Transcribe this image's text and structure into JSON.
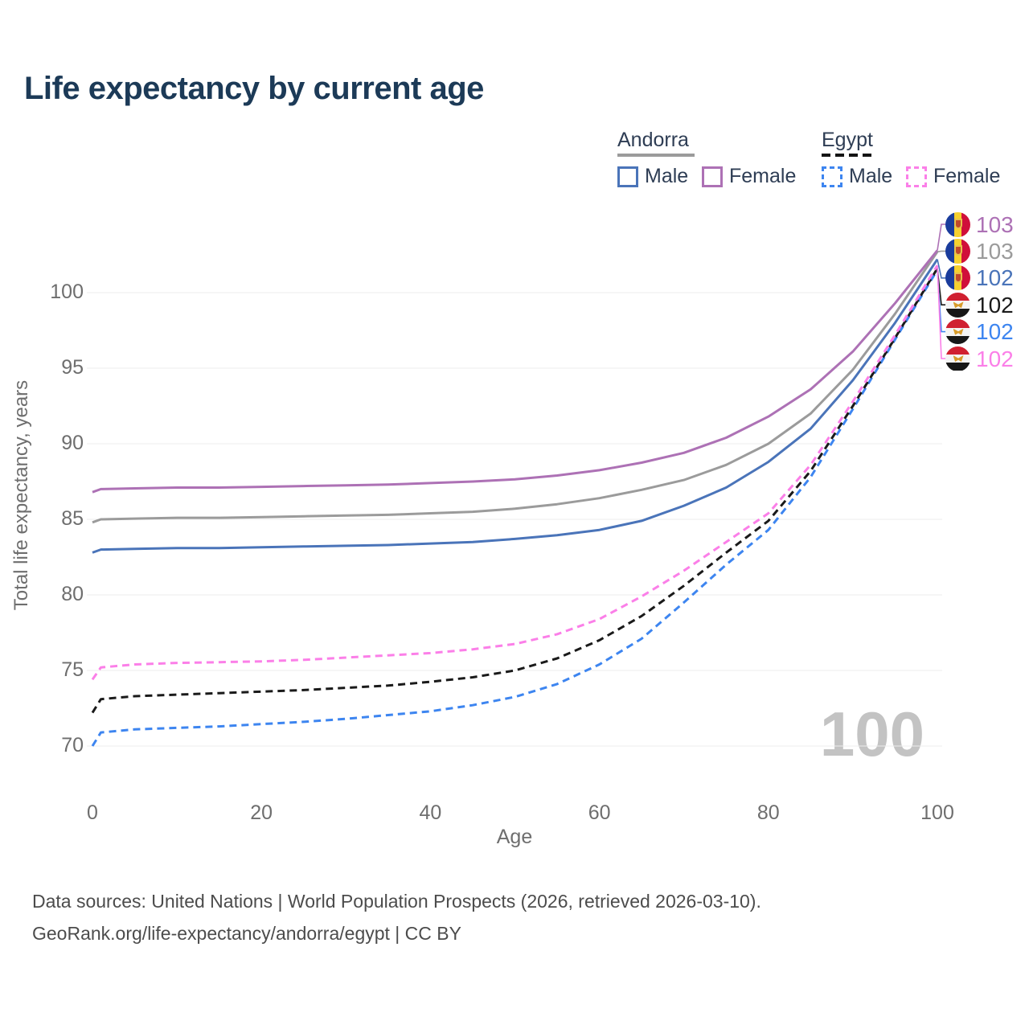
{
  "title": "Life expectancy by current age",
  "legend": {
    "groups": [
      {
        "country": "Andorra",
        "line_style": "solid",
        "underline_color": "#9b9b9b",
        "items": [
          {
            "label": "Male",
            "color": "#4a74b9",
            "dashed": false
          },
          {
            "label": "Female",
            "color": "#ad71b5",
            "dashed": false
          }
        ]
      },
      {
        "country": "Egypt",
        "line_style": "dashed",
        "underline_color": "#141414",
        "items": [
          {
            "label": "Male",
            "color": "#3d85f0",
            "dashed": true
          },
          {
            "label": "Female",
            "color": "#fb7fe8",
            "dashed": true
          }
        ]
      }
    ]
  },
  "chart_data": {
    "type": "line",
    "title": "Life expectancy by current age",
    "xlabel": "Age",
    "ylabel": "Total life expectancy, years",
    "x_ticks": [
      0,
      20,
      40,
      60,
      80,
      100
    ],
    "y_ticks": [
      70,
      75,
      80,
      85,
      90,
      95,
      100
    ],
    "xlim": [
      0,
      100
    ],
    "ylim": [
      68,
      104.5
    ],
    "grid": "horizontal",
    "legend_position": "top-right",
    "watermark": "100",
    "x": [
      0,
      1,
      5,
      10,
      15,
      20,
      25,
      30,
      35,
      40,
      45,
      50,
      55,
      60,
      65,
      70,
      75,
      80,
      85,
      90,
      95,
      100
    ],
    "series": [
      {
        "name": "Andorra All",
        "country": "Andorra",
        "color": "#9b9b9b",
        "dashed": false,
        "values": [
          84.8,
          85.0,
          85.05,
          85.1,
          85.1,
          85.15,
          85.2,
          85.25,
          85.3,
          85.4,
          85.5,
          85.7,
          86.0,
          86.4,
          86.95,
          87.6,
          88.6,
          90.0,
          92.0,
          94.9,
          98.6,
          102.7
        ]
      },
      {
        "name": "Andorra Male",
        "country": "Andorra",
        "color": "#4a74b9",
        "dashed": false,
        "values": [
          82.8,
          83.0,
          83.05,
          83.1,
          83.1,
          83.15,
          83.2,
          83.25,
          83.3,
          83.4,
          83.5,
          83.7,
          83.95,
          84.3,
          84.9,
          85.9,
          87.1,
          88.8,
          91.0,
          94.2,
          98.0,
          102.2
        ]
      },
      {
        "name": "Andorra Female",
        "country": "Andorra",
        "color": "#ad71b5",
        "dashed": false,
        "values": [
          86.8,
          87.0,
          87.05,
          87.1,
          87.1,
          87.15,
          87.2,
          87.25,
          87.3,
          87.4,
          87.5,
          87.65,
          87.9,
          88.25,
          88.75,
          89.4,
          90.4,
          91.8,
          93.6,
          96.1,
          99.3,
          102.8
        ]
      },
      {
        "name": "Egypt Male",
        "country": "Egypt",
        "color": "#3d85f0",
        "dashed": true,
        "values": [
          70.0,
          70.9,
          71.1,
          71.2,
          71.3,
          71.45,
          71.6,
          71.8,
          72.05,
          72.3,
          72.7,
          73.25,
          74.1,
          75.4,
          77.1,
          79.5,
          82.0,
          84.3,
          87.8,
          92.3,
          96.9,
          101.5
        ]
      },
      {
        "name": "Egypt All",
        "country": "Egypt",
        "color": "#1a1a1a",
        "dashed": true,
        "values": [
          72.2,
          73.1,
          73.3,
          73.4,
          73.5,
          73.6,
          73.7,
          73.85,
          74.0,
          74.25,
          74.55,
          75.0,
          75.8,
          77.0,
          78.6,
          80.6,
          82.8,
          84.9,
          88.2,
          92.5,
          97.0,
          101.6
        ]
      },
      {
        "name": "Egypt Female",
        "country": "Egypt",
        "color": "#fb7fe8",
        "dashed": true,
        "values": [
          74.4,
          75.2,
          75.4,
          75.5,
          75.55,
          75.6,
          75.7,
          75.85,
          76.0,
          76.15,
          76.4,
          76.75,
          77.4,
          78.4,
          79.9,
          81.6,
          83.5,
          85.4,
          88.6,
          92.8,
          97.2,
          101.8
        ]
      }
    ],
    "end_labels": [
      {
        "text": "103",
        "color": "#ad71b5",
        "flag": "andorra",
        "series": "Andorra Female"
      },
      {
        "text": "103",
        "color": "#9b9b9b",
        "flag": "andorra",
        "series": "Andorra All"
      },
      {
        "text": "102",
        "color": "#4a74b9",
        "flag": "andorra",
        "series": "Andorra Male"
      },
      {
        "text": "102",
        "color": "#1a1a1a",
        "flag": "egypt",
        "series": "Egypt All"
      },
      {
        "text": "102",
        "color": "#3d85f0",
        "flag": "egypt",
        "series": "Egypt Male"
      },
      {
        "text": "102",
        "color": "#fb7fe8",
        "flag": "egypt",
        "series": "Egypt Female"
      }
    ]
  },
  "footer": {
    "line1": "Data sources: United Nations | World Population Prospects (2026, retrieved 2026-03-10).",
    "line2": "GeoRank.org/life-expectancy/andorra/egypt | CC BY"
  }
}
